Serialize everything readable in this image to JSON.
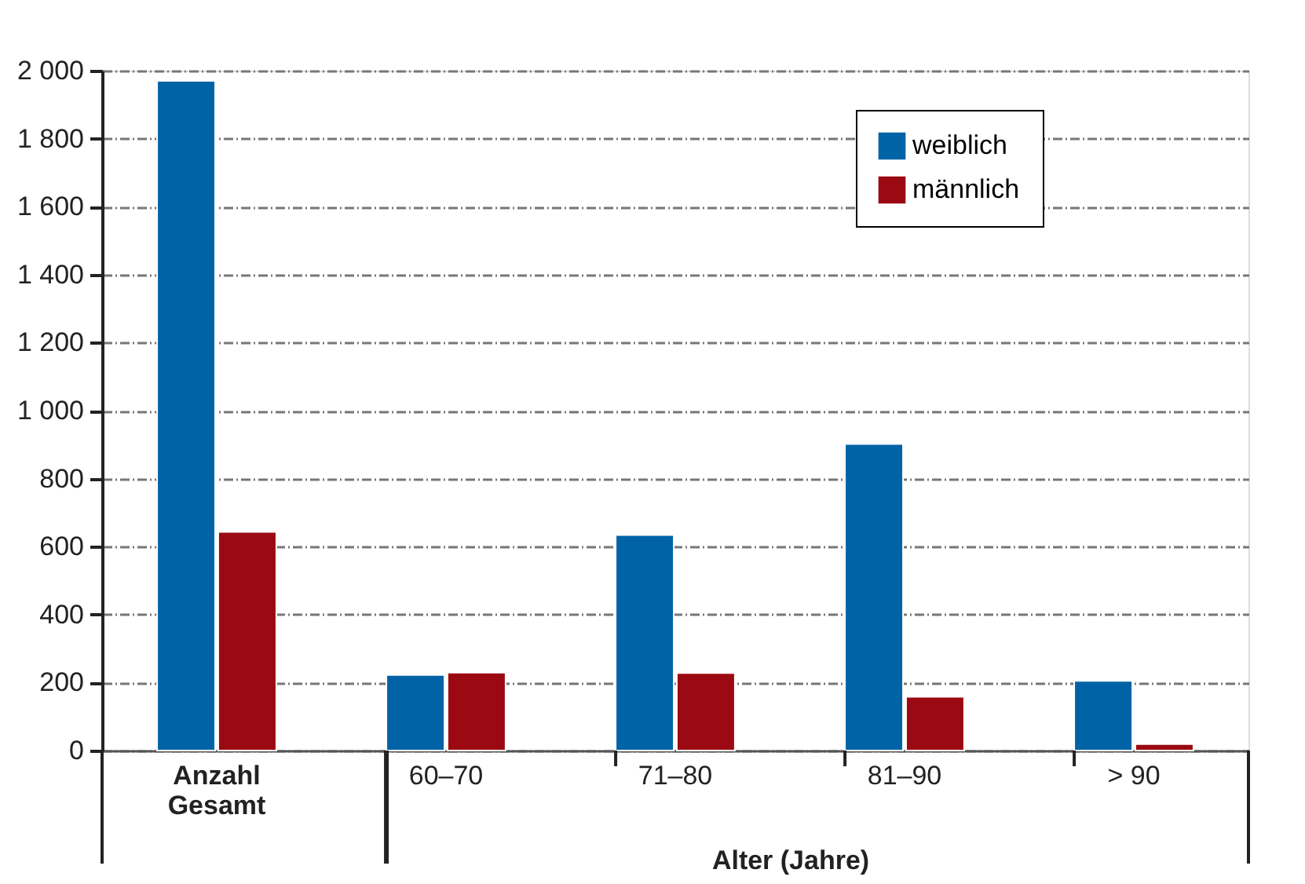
{
  "chart_data": {
    "type": "bar",
    "categories": [
      "Anzahl Gesamt",
      "60–70",
      "71–80",
      "81–90",
      "> 90"
    ],
    "series": [
      {
        "name": "weiblich",
        "color": "#0063a6",
        "values": [
          1970,
          222,
          634,
          902,
          205
        ]
      },
      {
        "name": "männlich",
        "color": "#9b0a12",
        "values": [
          643,
          229,
          228,
          158,
          19
        ]
      }
    ],
    "xlabel": "Alter (Jahre)",
    "ylim": [
      0,
      2000
    ],
    "yticks": [
      0,
      200,
      400,
      600,
      800,
      {
        "value": 1000,
        "label": "1 000"
      },
      {
        "value": 1200,
        "label": "1 200"
      },
      {
        "value": 1400,
        "label": "1 400"
      },
      {
        "value": 1600,
        "label": "1 600"
      },
      {
        "value": 1800,
        "label": "1 800"
      },
      {
        "value": 2000,
        "label": "2 000"
      }
    ],
    "grid": "y",
    "legend": "top right"
  }
}
